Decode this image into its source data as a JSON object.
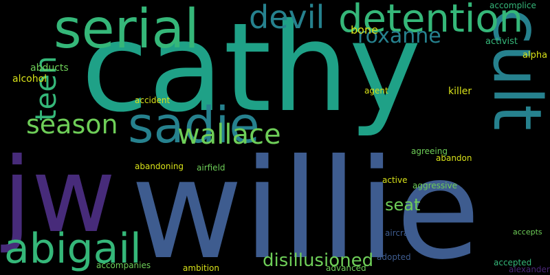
{
  "background": "#000000",
  "palette": {
    "purple": "#472b7a",
    "indigo": "#3b4f8a",
    "blue": "#3e5c8f",
    "teal": "#26818e",
    "sea": "#1fa187",
    "green": "#35b779",
    "lime": "#6ece58",
    "yellow": "#d8e219",
    "dark": "#482575"
  },
  "words": [
    "cathy",
    "willie",
    "jw",
    "cult",
    "serial",
    "detention",
    "sadie",
    "abigail",
    "devil",
    "teen",
    "wallace",
    "season",
    "roxanne",
    "disillusioned",
    "seat",
    "bone",
    "alcohol",
    "abducts",
    "accomplice",
    "activist",
    "alpha",
    "killer",
    "accident",
    "agent",
    "agreeing",
    "abandon",
    "aggressive",
    "active",
    "abandoning",
    "airfield",
    "aircraft",
    "accepts",
    "accepted",
    "adopted",
    "advanced",
    "alexander",
    "ambition",
    "accompanies",
    "disillusioned"
  ]
}
